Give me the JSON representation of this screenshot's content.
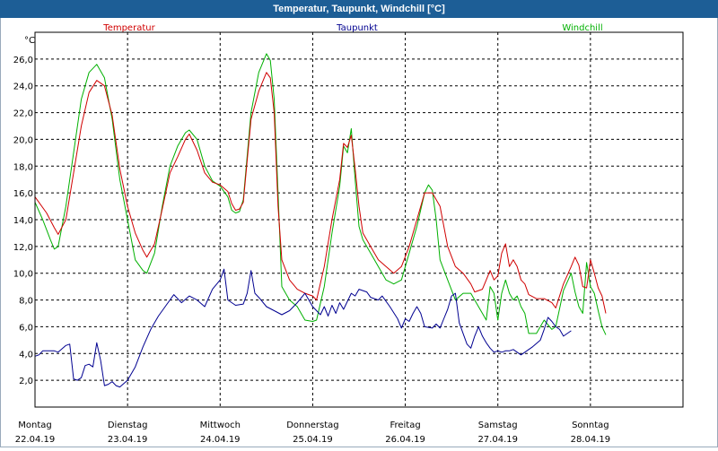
{
  "window": {
    "title": "Temperatur, Taupunkt, Windchill [°C]"
  },
  "chart_data": {
    "type": "line",
    "title": "Temperatur, Taupunkt, Windchill [°C]",
    "ylabel": "°C",
    "ylim": [
      0,
      28
    ],
    "xlim": [
      0,
      168
    ],
    "yticks": [
      "2,0",
      "4,0",
      "6,0",
      "8,0",
      "10,0",
      "12,0",
      "14,0",
      "16,0",
      "18,0",
      "20,0",
      "22,0",
      "24,0",
      "26,0"
    ],
    "ytick_values": [
      2,
      4,
      6,
      8,
      10,
      12,
      14,
      16,
      18,
      20,
      22,
      24,
      26
    ],
    "grid": true,
    "xlabels": [
      {
        "day": "Montag",
        "date": "22.04.19"
      },
      {
        "day": "Dienstag",
        "date": "23.04.19"
      },
      {
        "day": "Mittwoch",
        "date": "24.04.19"
      },
      {
        "day": "Donnerstag",
        "date": "25.04.19"
      },
      {
        "day": "Freitag",
        "date": "26.04.19"
      },
      {
        "day": "Samstag",
        "date": "27.04.19"
      },
      {
        "day": "Sonntag",
        "date": "28.04.19"
      }
    ],
    "series": [
      {
        "name": "Temperatur",
        "color": "#d00000",
        "points": [
          [
            0,
            15.7
          ],
          [
            3,
            14.5
          ],
          [
            5,
            13.4
          ],
          [
            6,
            12.9
          ],
          [
            8,
            14.0
          ],
          [
            10,
            17.5
          ],
          [
            12,
            21.0
          ],
          [
            14,
            23.5
          ],
          [
            16,
            24.4
          ],
          [
            18,
            24.0
          ],
          [
            20,
            21.8
          ],
          [
            22,
            17.8
          ],
          [
            24,
            15.0
          ],
          [
            26,
            13.0
          ],
          [
            28,
            11.7
          ],
          [
            29,
            11.2
          ],
          [
            31,
            12.2
          ],
          [
            33,
            14.8
          ],
          [
            35,
            17.5
          ],
          [
            37,
            18.7
          ],
          [
            39,
            20.0
          ],
          [
            40,
            20.4
          ],
          [
            42,
            19.2
          ],
          [
            44,
            17.5
          ],
          [
            46,
            16.8
          ],
          [
            48,
            16.6
          ],
          [
            50,
            16.1
          ],
          [
            51,
            15.2
          ],
          [
            52,
            14.7
          ],
          [
            53,
            14.8
          ],
          [
            54,
            15.3
          ],
          [
            56,
            21.5
          ],
          [
            58,
            23.6
          ],
          [
            60,
            25.0
          ],
          [
            61,
            24.6
          ],
          [
            62,
            22.0
          ],
          [
            63,
            15.0
          ],
          [
            64,
            11.0
          ],
          [
            66,
            9.5
          ],
          [
            68,
            8.8
          ],
          [
            70,
            8.5
          ],
          [
            72,
            8.3
          ],
          [
            73,
            8.0
          ],
          [
            75,
            10.5
          ],
          [
            77,
            14.0
          ],
          [
            79,
            17.0
          ],
          [
            80,
            19.7
          ],
          [
            81,
            19.4
          ],
          [
            82,
            20.3
          ],
          [
            83,
            17.8
          ],
          [
            84,
            15.0
          ],
          [
            85,
            13.0
          ],
          [
            87,
            12.0
          ],
          [
            89,
            11.0
          ],
          [
            91,
            10.5
          ],
          [
            93,
            10.0
          ],
          [
            95,
            10.5
          ],
          [
            97,
            12.0
          ],
          [
            99,
            14.0
          ],
          [
            101,
            16.0
          ],
          [
            103,
            16.0
          ],
          [
            105,
            15.0
          ],
          [
            107,
            12.0
          ],
          [
            109,
            10.5
          ],
          [
            111,
            10.0
          ],
          [
            113,
            9.2
          ],
          [
            114,
            8.6
          ],
          [
            116,
            8.8
          ],
          [
            117,
            9.5
          ],
          [
            118,
            10.2
          ],
          [
            119,
            9.5
          ],
          [
            120,
            9.8
          ],
          [
            121,
            11.5
          ],
          [
            122,
            12.2
          ],
          [
            123,
            10.5
          ],
          [
            124,
            11.0
          ],
          [
            125,
            10.5
          ],
          [
            126,
            9.5
          ],
          [
            127,
            9.2
          ],
          [
            128,
            8.4
          ],
          [
            130,
            8.1
          ],
          [
            132,
            8.1
          ],
          [
            134,
            7.8
          ],
          [
            135,
            7.4
          ],
          [
            137,
            9.2
          ],
          [
            139,
            10.5
          ],
          [
            140,
            11.2
          ],
          [
            141,
            10.6
          ],
          [
            142,
            9.0
          ],
          [
            143,
            8.9
          ],
          [
            144,
            11.0
          ],
          [
            145,
            10.0
          ],
          [
            146,
            8.9
          ],
          [
            147,
            8.3
          ],
          [
            148,
            7.0
          ]
        ]
      },
      {
        "name": "Taupunkt",
        "color": "#000090",
        "points": [
          [
            0,
            3.8
          ],
          [
            1,
            3.9
          ],
          [
            2,
            4.2
          ],
          [
            5,
            4.2
          ],
          [
            6,
            4.1
          ],
          [
            8,
            4.6
          ],
          [
            9,
            4.7
          ],
          [
            10,
            2.1
          ],
          [
            11,
            2.0
          ],
          [
            12,
            2.2
          ],
          [
            13,
            3.1
          ],
          [
            14,
            3.2
          ],
          [
            15,
            3.0
          ],
          [
            16,
            4.8
          ],
          [
            17,
            3.5
          ],
          [
            18,
            1.6
          ],
          [
            19,
            1.7
          ],
          [
            20,
            1.9
          ],
          [
            21,
            1.6
          ],
          [
            22,
            1.5
          ],
          [
            24,
            2.0
          ],
          [
            26,
            3.0
          ],
          [
            28,
            4.5
          ],
          [
            30,
            5.8
          ],
          [
            32,
            6.8
          ],
          [
            34,
            7.6
          ],
          [
            36,
            8.4
          ],
          [
            38,
            7.8
          ],
          [
            40,
            8.3
          ],
          [
            42,
            8.0
          ],
          [
            44,
            7.5
          ],
          [
            46,
            8.8
          ],
          [
            48,
            9.5
          ],
          [
            49,
            10.3
          ],
          [
            50,
            8.0
          ],
          [
            52,
            7.6
          ],
          [
            54,
            7.7
          ],
          [
            55,
            8.5
          ],
          [
            56,
            10.2
          ],
          [
            57,
            8.5
          ],
          [
            58,
            8.2
          ],
          [
            60,
            7.5
          ],
          [
            62,
            7.2
          ],
          [
            64,
            6.9
          ],
          [
            66,
            7.2
          ],
          [
            68,
            7.8
          ],
          [
            70,
            8.5
          ],
          [
            72,
            7.5
          ],
          [
            74,
            6.9
          ],
          [
            75,
            7.5
          ],
          [
            76,
            6.8
          ],
          [
            77,
            7.6
          ],
          [
            78,
            7.0
          ],
          [
            79,
            7.8
          ],
          [
            80,
            7.3
          ],
          [
            82,
            8.5
          ],
          [
            83,
            8.3
          ],
          [
            84,
            8.8
          ],
          [
            86,
            8.6
          ],
          [
            87,
            8.2
          ],
          [
            89,
            8.0
          ],
          [
            90,
            8.3
          ],
          [
            92,
            7.5
          ],
          [
            94,
            6.6
          ],
          [
            95,
            5.9
          ],
          [
            96,
            6.6
          ],
          [
            97,
            6.4
          ],
          [
            98,
            7.0
          ],
          [
            99,
            7.5
          ],
          [
            100,
            7.0
          ],
          [
            101,
            6.0
          ],
          [
            103,
            5.9
          ],
          [
            104,
            6.2
          ],
          [
            105,
            5.9
          ],
          [
            106,
            6.6
          ],
          [
            107,
            7.3
          ],
          [
            108,
            8.3
          ],
          [
            109,
            8.5
          ],
          [
            110,
            6.3
          ],
          [
            111,
            5.5
          ],
          [
            112,
            4.7
          ],
          [
            113,
            4.4
          ],
          [
            114,
            5.3
          ],
          [
            115,
            6.0
          ],
          [
            116,
            5.3
          ],
          [
            117,
            4.8
          ],
          [
            118,
            4.4
          ],
          [
            119,
            4.1
          ],
          [
            120,
            4.2
          ],
          [
            121,
            4.1
          ],
          [
            122,
            4.2
          ],
          [
            123,
            4.2
          ],
          [
            124,
            4.3
          ],
          [
            125,
            4.1
          ],
          [
            126,
            3.9
          ],
          [
            127,
            4.1
          ],
          [
            129,
            4.5
          ],
          [
            131,
            5.0
          ],
          [
            132,
            5.8
          ],
          [
            133,
            6.7
          ],
          [
            134,
            6.4
          ],
          [
            135,
            6.0
          ],
          [
            136,
            5.8
          ],
          [
            137,
            5.3
          ],
          [
            138,
            5.5
          ],
          [
            139,
            5.7
          ]
        ]
      },
      {
        "name": "Windchill",
        "color": "#00b000",
        "points": [
          [
            0,
            15.3
          ],
          [
            2,
            14.0
          ],
          [
            4,
            12.5
          ],
          [
            5,
            11.8
          ],
          [
            6,
            12.0
          ],
          [
            8,
            15.0
          ],
          [
            10,
            19.0
          ],
          [
            12,
            23.0
          ],
          [
            14,
            25.0
          ],
          [
            16,
            25.6
          ],
          [
            18,
            24.6
          ],
          [
            20,
            21.5
          ],
          [
            22,
            17.0
          ],
          [
            24,
            14.0
          ],
          [
            26,
            11.0
          ],
          [
            28,
            10.2
          ],
          [
            29,
            10.0
          ],
          [
            31,
            11.5
          ],
          [
            33,
            15.0
          ],
          [
            35,
            18.0
          ],
          [
            37,
            19.5
          ],
          [
            39,
            20.5
          ],
          [
            40,
            20.7
          ],
          [
            42,
            20.0
          ],
          [
            44,
            18.0
          ],
          [
            46,
            16.9
          ],
          [
            48,
            16.5
          ],
          [
            50,
            15.7
          ],
          [
            51,
            14.7
          ],
          [
            52,
            14.5
          ],
          [
            53,
            14.6
          ],
          [
            54,
            15.5
          ],
          [
            56,
            22.0
          ],
          [
            58,
            25.0
          ],
          [
            60,
            26.4
          ],
          [
            61,
            25.9
          ],
          [
            62,
            23.0
          ],
          [
            63,
            16.0
          ],
          [
            64,
            9.0
          ],
          [
            66,
            8.0
          ],
          [
            68,
            7.5
          ],
          [
            70,
            6.5
          ],
          [
            72,
            6.4
          ],
          [
            73,
            6.5
          ],
          [
            75,
            9.0
          ],
          [
            77,
            13.0
          ],
          [
            79,
            16.5
          ],
          [
            80,
            19.5
          ],
          [
            81,
            19.0
          ],
          [
            82,
            20.8
          ],
          [
            83,
            17.0
          ],
          [
            84,
            13.5
          ],
          [
            85,
            12.5
          ],
          [
            87,
            11.5
          ],
          [
            89,
            10.5
          ],
          [
            91,
            9.5
          ],
          [
            93,
            9.2
          ],
          [
            95,
            9.5
          ],
          [
            97,
            11.5
          ],
          [
            99,
            13.5
          ],
          [
            101,
            16.0
          ],
          [
            102,
            16.6
          ],
          [
            103,
            16.2
          ],
          [
            104,
            14.0
          ],
          [
            105,
            11.0
          ],
          [
            107,
            9.5
          ],
          [
            109,
            8.0
          ],
          [
            111,
            8.5
          ],
          [
            113,
            8.5
          ],
          [
            114,
            8.0
          ],
          [
            116,
            7.0
          ],
          [
            117,
            6.5
          ],
          [
            118,
            9.0
          ],
          [
            119,
            8.5
          ],
          [
            120,
            6.5
          ],
          [
            121,
            8.5
          ],
          [
            122,
            9.5
          ],
          [
            123,
            8.5
          ],
          [
            124,
            8.0
          ],
          [
            125,
            8.3
          ],
          [
            126,
            7.5
          ],
          [
            127,
            7.0
          ],
          [
            128,
            5.5
          ],
          [
            130,
            5.5
          ],
          [
            132,
            6.5
          ],
          [
            134,
            5.8
          ],
          [
            135,
            6.0
          ],
          [
            137,
            8.7
          ],
          [
            139,
            10.0
          ],
          [
            140,
            8.6
          ],
          [
            141,
            7.5
          ],
          [
            142,
            7.0
          ],
          [
            143,
            10.8
          ],
          [
            144,
            9.0
          ],
          [
            145,
            8.5
          ],
          [
            146,
            7.2
          ],
          [
            147,
            6.0
          ],
          [
            148,
            5.4
          ]
        ]
      }
    ]
  }
}
